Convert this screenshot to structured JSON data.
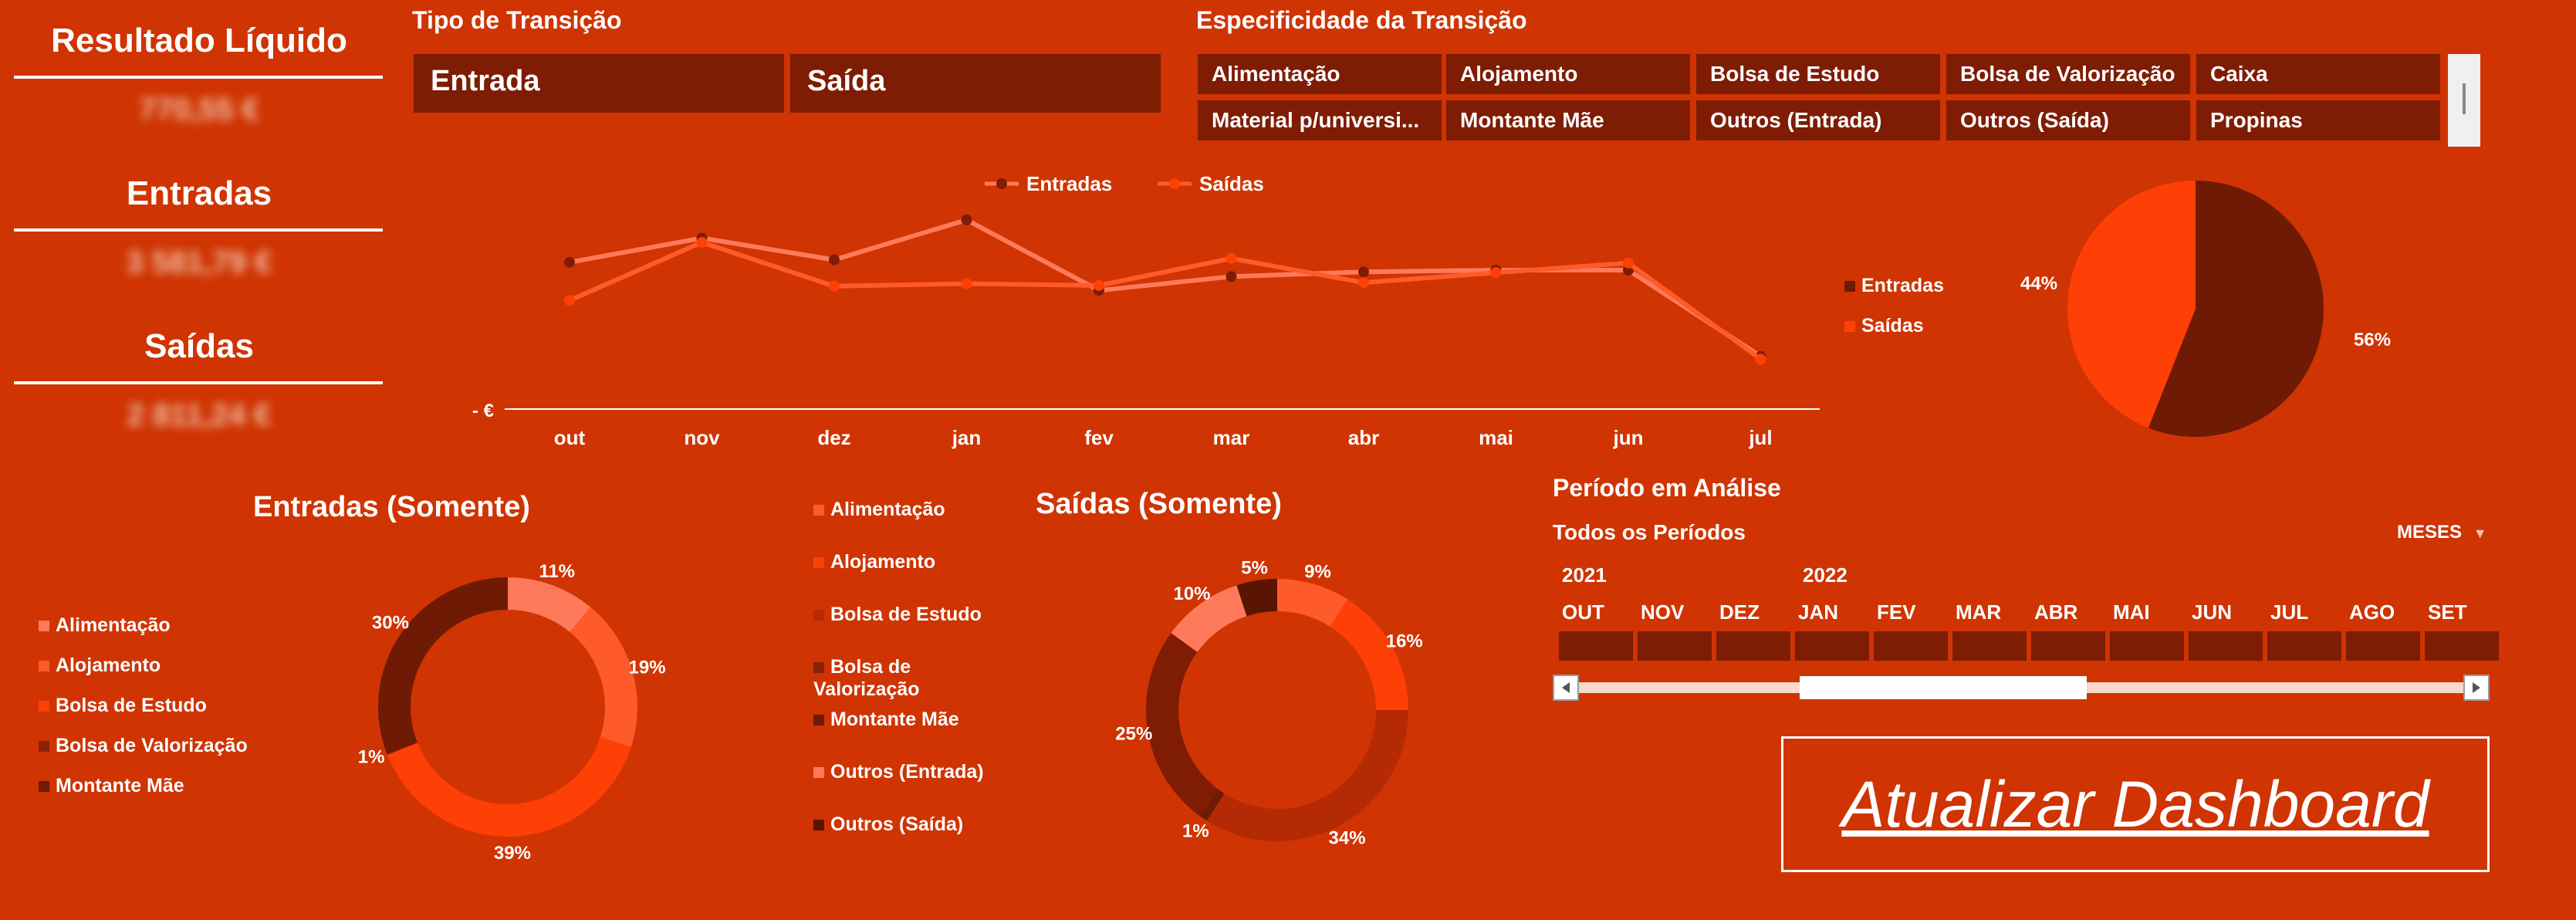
{
  "kpis": {
    "resultado": {
      "title": "Resultado Líquido",
      "value": "770,55 €"
    },
    "entradas": {
      "title": "Entradas",
      "value": "3 581,79 €"
    },
    "saidas": {
      "title": "Saídas",
      "value": "2 811,24 €"
    }
  },
  "tipo_transicao": {
    "title": "Tipo de Transição",
    "options": [
      "Entrada",
      "Saída"
    ]
  },
  "especificidade": {
    "title": "Especificidade da Transição",
    "options": [
      "Alimentação",
      "Alojamento",
      "Bolsa de Estudo",
      "Bolsa de Valorização",
      "Caixa",
      "Material p/universi...",
      "Montante Mãe",
      "Outros (Entrada)",
      "Outros (Saída)",
      "Propinas"
    ]
  },
  "colors": {
    "background": "#cf3402",
    "dark": "#7e1c04",
    "entradas_line": "#ff7a5a",
    "saidas_line": "#ff5a2a",
    "slice_dark": "#6e1a04",
    "slice_bright": "#ff4006"
  },
  "chart_data": [
    {
      "type": "line",
      "categories": [
        "out",
        "nov",
        "dez",
        "jan",
        "fev",
        "mar",
        "abr",
        "mai",
        "jun",
        "jul"
      ],
      "series": [
        {
          "name": "Entradas",
          "values": [
            412,
            480,
            419,
            531,
            333,
            372,
            385,
            390,
            390,
            148
          ]
        },
        {
          "name": "Saídas",
          "values": [
            305,
            468,
            345,
            352,
            347,
            423,
            355,
            383,
            410,
            140
          ]
        }
      ],
      "y_zero_label": "-   €",
      "ylim": [
        0,
        650
      ],
      "legend_position": "top-center"
    },
    {
      "type": "pie",
      "labels": [
        "Entradas",
        "Saídas"
      ],
      "values": [
        56,
        44
      ],
      "data_labels": [
        "56%",
        "44%"
      ],
      "legend_position": "left"
    },
    {
      "type": "pie",
      "title": "Entradas (Somente)",
      "donut": true,
      "labels": [
        "Alimentação",
        "Alojamento",
        "Bolsa de Estudo",
        "Bolsa de Valorização",
        "Montante Mãe"
      ],
      "values": [
        11,
        19,
        39,
        1,
        30
      ],
      "data_labels": [
        "11%",
        "19%",
        "39%",
        "1%",
        "30%"
      ],
      "legend_position": "left"
    },
    {
      "type": "pie",
      "title": "Saídas (Somente)",
      "donut": true,
      "labels": [
        "Alimentação",
        "Alojamento",
        "Bolsa de Estudo",
        "Bolsa de Valorização",
        "Montante Mãe",
        "Outros (Entrada)",
        "Outros (Saída)"
      ],
      "values": [
        9,
        16,
        34,
        1,
        25,
        10,
        5
      ],
      "data_labels": [
        "9%",
        "16%",
        "34%",
        "1%",
        "25%",
        "10%",
        "5%"
      ],
      "legend_position": "left"
    }
  ],
  "legend_saidas_display": [
    "Alimentação",
    "Alojamento",
    "Bolsa de Estudo",
    "Bolsa de Valorização",
    "Montante Mãe",
    "Outros (Entrada)",
    "Outros (Saída)"
  ],
  "periodo": {
    "title": "Período em Análise",
    "subtitle": "Todos os Períodos",
    "level": "MESES",
    "years": [
      "2021",
      "2022"
    ],
    "months": [
      "OUT",
      "NOV",
      "DEZ",
      "JAN",
      "FEV",
      "MAR",
      "ABR",
      "MAI",
      "JUN",
      "JUL",
      "AGO",
      "SET"
    ]
  },
  "atualizar_label": "Atualizar Dashboard"
}
